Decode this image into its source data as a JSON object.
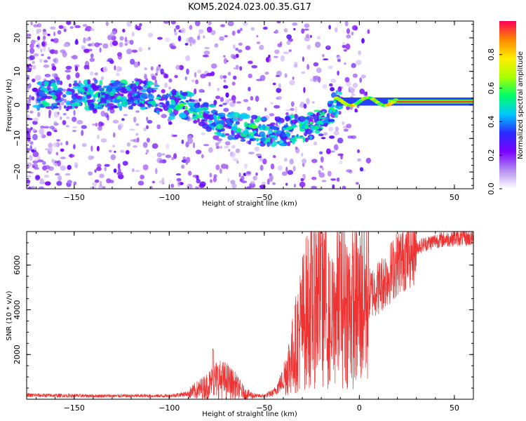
{
  "title": "KOM5.2024.023.00.35.G17",
  "chart_data": [
    {
      "type": "heatmap",
      "xlabel": "Height of straight line (km)",
      "ylabel": "Frequency (Hz)",
      "xlim": [
        -175,
        60
      ],
      "ylim": [
        -25,
        25
      ],
      "xticks": [
        -150,
        -100,
        -50,
        0,
        50
      ],
      "yticks": [
        -20,
        -10,
        0,
        10,
        20
      ],
      "colorbar": {
        "label": "Normalized spectral amplitude",
        "range": [
          0,
          1
        ],
        "ticks": [
          "0.0",
          "0.2",
          "0.4",
          "0.6",
          "0.8"
        ],
        "colormap": [
          "#ffffff",
          "#b38cf0",
          "#7a00ff",
          "#2a2aff",
          "#00c8ff",
          "#00ff66",
          "#aaff00",
          "#ffee00",
          "#ff8800",
          "#ff0055"
        ]
      },
      "ridge": {
        "x": [
          -110,
          -100,
          -90,
          -80,
          -70,
          -60,
          -50,
          -40,
          -30,
          -20,
          -10,
          0,
          10,
          20,
          30,
          40,
          50,
          60
        ],
        "y": [
          3,
          0,
          0,
          -3,
          -6,
          -7,
          -8,
          -8,
          -7,
          -5,
          1,
          0,
          1,
          1,
          1,
          1,
          1,
          1
        ],
        "amplitude": [
          0.3,
          0.35,
          0.4,
          0.45,
          0.5,
          0.45,
          0.5,
          0.55,
          0.5,
          0.4,
          0.6,
          0.7,
          0.75,
          0.8,
          0.85,
          0.85,
          0.85,
          0.85
        ]
      },
      "grid": false
    },
    {
      "type": "line",
      "xlabel": "Height of straight line (km)",
      "ylabel": "SNR (10 * v/v)",
      "xlim": [
        -175,
        60
      ],
      "ylim": [
        0,
        7500
      ],
      "xticks": [
        -150,
        -100,
        -50,
        0,
        50
      ],
      "yticks": [
        2000,
        4000,
        6000
      ],
      "series": [
        {
          "color": "#ee3333",
          "envelope": {
            "x": [
              -175,
              -140,
              -100,
              -90,
              -80,
              -75,
              -70,
              -65,
              -60,
              -55,
              -50,
              -45,
              -40,
              -35,
              -30,
              -25,
              -20,
              -15,
              -10,
              -5,
              0,
              5,
              10,
              15,
              20,
              25,
              30,
              40,
              50,
              60
            ],
            "y": [
              180,
              150,
              150,
              250,
              600,
              900,
              850,
              600,
              250,
              150,
              150,
              300,
              900,
              2000,
              3500,
              4500,
              5000,
              3200,
              4700,
              4000,
              4200,
              4700,
              5000,
              5500,
              6100,
              6500,
              6800,
              7100,
              7200,
              7200
            ]
          },
          "peaks": {
            "x": [
              -77,
              -20,
              -15,
              -10
            ],
            "y": [
              2300,
              7100,
              2600,
              7100
            ]
          }
        }
      ],
      "grid": false
    }
  ]
}
